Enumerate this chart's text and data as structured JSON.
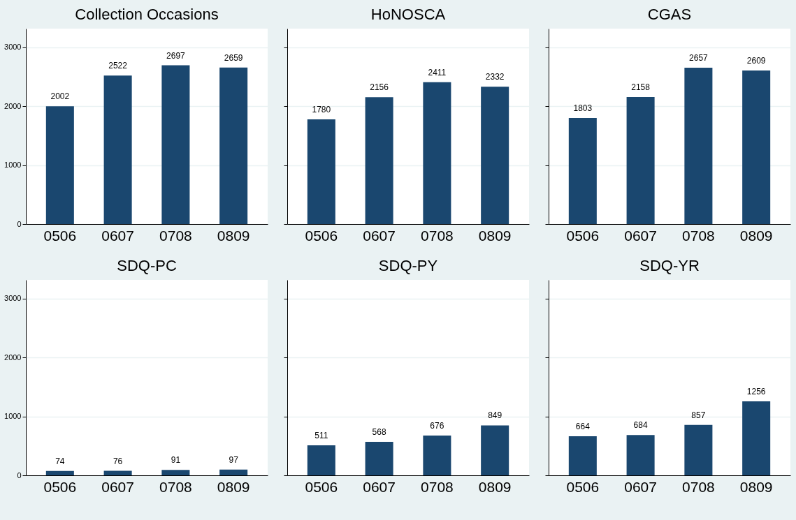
{
  "chart_data": [
    {
      "type": "bar",
      "title": "Collection Occasions",
      "categories": [
        "0506",
        "0607",
        "0708",
        "0809"
      ],
      "values": [
        2002,
        2522,
        2697,
        2659
      ],
      "color": "#1a476f",
      "ylim": [
        0,
        3320
      ],
      "yticks": [
        0,
        1000,
        2000,
        3000
      ],
      "grid": "y",
      "data_labels": true
    },
    {
      "type": "bar",
      "title": "HoNOSCA",
      "categories": [
        "0506",
        "0607",
        "0708",
        "0809"
      ],
      "values": [
        1780,
        2156,
        2411,
        2332
      ],
      "color": "#1a476f",
      "ylim": [
        0,
        3320
      ],
      "yticks": [
        0,
        1000,
        2000,
        3000
      ],
      "grid": "y",
      "data_labels": true,
      "tick_labels": "x"
    },
    {
      "type": "bar",
      "title": "CGAS",
      "categories": [
        "0506",
        "0607",
        "0708",
        "0809"
      ],
      "values": [
        1803,
        2158,
        2657,
        2609
      ],
      "color": "#1a476f",
      "ylim": [
        0,
        3320
      ],
      "yticks": [
        0,
        1000,
        2000,
        3000
      ],
      "grid": "y",
      "data_labels": true,
      "tick_labels": "x"
    },
    {
      "type": "bar",
      "title": "SDQ-PC",
      "categories": [
        "0506",
        "0607",
        "0708",
        "0809"
      ],
      "values": [
        74,
        76,
        91,
        97
      ],
      "color": "#1a476f",
      "ylim": [
        0,
        3320
      ],
      "yticks": [
        0,
        1000,
        2000,
        3000
      ],
      "grid": "y",
      "data_labels": true
    },
    {
      "type": "bar",
      "title": "SDQ-PY",
      "categories": [
        "0506",
        "0607",
        "0708",
        "0809"
      ],
      "values": [
        511,
        568,
        676,
        849
      ],
      "color": "#1a476f",
      "ylim": [
        0,
        3320
      ],
      "yticks": [
        0,
        1000,
        2000,
        3000
      ],
      "grid": "y",
      "data_labels": true,
      "tick_labels": "x"
    },
    {
      "type": "bar",
      "title": "SDQ-YR",
      "categories": [
        "0506",
        "0607",
        "0708",
        "0809"
      ],
      "values": [
        664,
        684,
        857,
        1256
      ],
      "color": "#1a476f",
      "ylim": [
        0,
        3320
      ],
      "yticks": [
        0,
        1000,
        2000,
        3000
      ],
      "grid": "y",
      "data_labels": true,
      "tick_labels": "x"
    }
  ]
}
